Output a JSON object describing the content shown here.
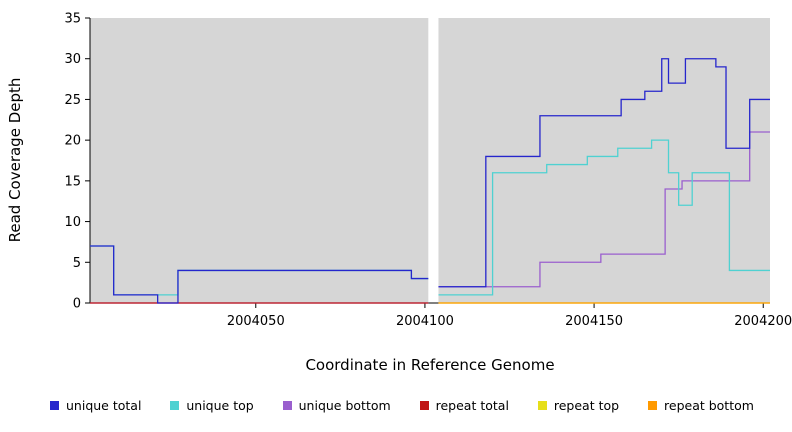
{
  "figure": {
    "title": ""
  },
  "legend": {
    "items": [
      {
        "label": "unique total",
        "color": "#2626cc"
      },
      {
        "label": "unique top",
        "color": "#4fd1d1"
      },
      {
        "label": "unique bottom",
        "color": "#9a5fce"
      },
      {
        "label": "repeat total",
        "color": "#c01414"
      },
      {
        "label": "repeat top",
        "color": "#e6df1a"
      },
      {
        "label": "repeat bottom",
        "color": "#ff9a00"
      }
    ]
  },
  "chart_data": {
    "type": "line",
    "title": "",
    "xlabel": "Coordinate in Reference Genome",
    "ylabel": "Read Coverage Depth",
    "xlim": [
      2004001,
      2004202
    ],
    "ylim": [
      0,
      35
    ],
    "x_ticks": [
      2004050,
      2004100,
      2004150,
      2004200
    ],
    "y_ticks": [
      0,
      5,
      10,
      15,
      20,
      25,
      30,
      35
    ],
    "grid": false,
    "legend_position": "bottom",
    "panel_bg": "#d6d6d6",
    "gap_band": {
      "from": 2004101,
      "to": 2004104,
      "color": "#ffffff"
    },
    "series": [
      {
        "name": "repeat top",
        "color": "#e6df1a",
        "segments": [
          {
            "points": [
              [
                2004104,
                0
              ]
            ],
            "end": 2004202
          }
        ]
      },
      {
        "name": "repeat bottom",
        "color": "#ff9a00",
        "segments": [
          {
            "points": [
              [
                2004104,
                0
              ]
            ],
            "end": 2004202
          }
        ]
      },
      {
        "name": "unique bottom",
        "color": "#9a5fce",
        "segments": [
          {
            "points": [
              [
                2004001,
                0
              ]
            ],
            "end": 2004101
          },
          {
            "points": [
              [
                2004104,
                2
              ],
              [
                2004134,
                5
              ],
              [
                2004152,
                6
              ],
              [
                2004171,
                14
              ],
              [
                2004176,
                15
              ],
              [
                2004196,
                21
              ]
            ],
            "end": 2004202
          }
        ]
      },
      {
        "name": "repeat total",
        "color": "#c01414",
        "segments": [
          {
            "points": [
              [
                2004001,
                0
              ]
            ],
            "end": 2004101
          }
        ]
      },
      {
        "name": "unique top",
        "color": "#4fd1d1",
        "segments": [
          {
            "points": [
              [
                2004001,
                7
              ],
              [
                2004008,
                1
              ],
              [
                2004027,
                4
              ],
              [
                2004096,
                3
              ]
            ],
            "end": 2004101
          },
          {
            "points": [
              [
                2004104,
                1
              ],
              [
                2004120,
                16
              ],
              [
                2004136,
                17
              ],
              [
                2004148,
                18
              ],
              [
                2004157,
                19
              ],
              [
                2004167,
                20
              ],
              [
                2004172,
                16
              ],
              [
                2004175,
                12
              ],
              [
                2004179,
                16
              ],
              [
                2004190,
                4
              ]
            ],
            "end": 2004202
          }
        ]
      },
      {
        "name": "unique total",
        "color": "#2626cc",
        "segments": [
          {
            "points": [
              [
                2004001,
                7
              ],
              [
                2004008,
                1
              ],
              [
                2004021,
                0
              ],
              [
                2004027,
                4
              ],
              [
                2004096,
                3
              ]
            ],
            "end": 2004101
          },
          {
            "points": [
              [
                2004104,
                2
              ],
              [
                2004118,
                18
              ],
              [
                2004134,
                23
              ],
              [
                2004158,
                25
              ],
              [
                2004165,
                26
              ],
              [
                2004170,
                30
              ],
              [
                2004172,
                27
              ],
              [
                2004177,
                30
              ],
              [
                2004186,
                29
              ],
              [
                2004189,
                19
              ],
              [
                2004196,
                25
              ]
            ],
            "end": 2004202
          }
        ]
      }
    ]
  }
}
